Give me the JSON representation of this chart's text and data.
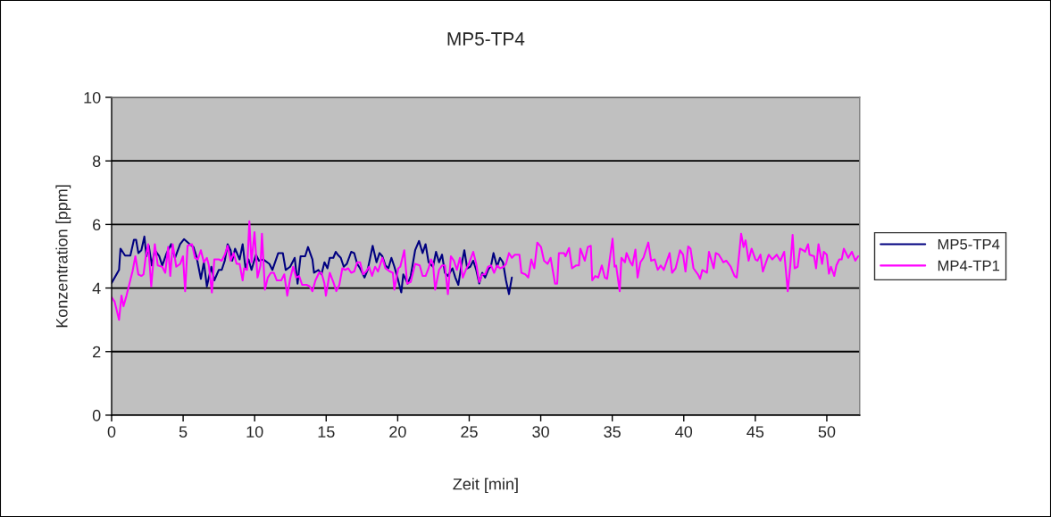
{
  "chart_data": {
    "type": "line",
    "title": "MP5-TP4",
    "xlabel": "Zeit [min]",
    "ylabel": "Konzentration [ppm]",
    "xlim": [
      0,
      52.3
    ],
    "xticks": [
      0,
      5,
      10,
      15,
      20,
      25,
      30,
      35,
      40,
      45,
      50
    ],
    "ylim": [
      0,
      10
    ],
    "yticks": [
      0,
      2,
      4,
      6,
      8,
      10
    ],
    "grid": "y",
    "legend": "right",
    "marker": "none",
    "line_style": "solid",
    "series": [
      {
        "name": "MP5-TP4",
        "color": "#000080",
        "x": [
          0.0,
          0.52,
          0.62,
          0.94,
          1.31,
          1.56,
          1.71,
          1.87,
          2.08,
          2.29,
          2.43,
          2.6,
          2.81,
          3.02,
          3.33,
          3.54,
          3.85,
          4.16,
          4.43,
          4.79,
          5.06,
          5.41,
          5.72,
          5.93,
          6.24,
          6.45,
          6.66,
          6.97,
          7.18,
          7.49,
          7.7,
          7.91,
          8.11,
          8.32,
          8.43,
          8.63,
          8.95,
          9.16,
          9.36,
          9.57,
          9.78,
          10.09,
          10.3,
          10.61,
          11.03,
          11.24,
          11.65,
          11.97,
          12.17,
          12.48,
          12.8,
          13.0,
          13.21,
          13.53,
          13.73,
          14.04,
          14.15,
          14.46,
          14.67,
          14.88,
          15.09,
          15.25,
          15.5,
          15.67,
          15.81,
          16.02,
          16.23,
          16.44,
          16.75,
          16.96,
          17.17,
          17.37,
          17.68,
          17.9,
          18.25,
          18.52,
          18.73,
          18.93,
          19.14,
          19.35,
          19.56,
          19.77,
          19.98,
          20.25,
          20.39,
          20.7,
          20.91,
          21.22,
          21.49,
          21.74,
          21.95,
          22.16,
          22.47,
          22.68,
          22.89,
          23.1,
          23.3,
          23.51,
          23.83,
          24.03,
          24.24,
          24.45,
          24.66,
          24.86,
          25.07,
          25.28,
          25.49,
          25.7,
          25.91,
          26.11,
          26.32,
          26.53,
          26.7,
          26.95,
          27.15,
          27.36,
          27.57,
          27.78,
          27.98
        ],
        "values": [
          4.16,
          4.57,
          5.24,
          5.02,
          5.02,
          5.52,
          5.52,
          5.1,
          5.19,
          5.62,
          5.0,
          5.33,
          4.71,
          5.19,
          5.0,
          4.71,
          5.1,
          5.38,
          4.95,
          5.38,
          5.54,
          5.4,
          5.29,
          5.0,
          4.29,
          4.81,
          4.05,
          4.67,
          4.24,
          4.57,
          4.57,
          4.86,
          5.38,
          5.19,
          4.86,
          5.24,
          4.9,
          5.38,
          4.62,
          4.9,
          4.57,
          5.05,
          4.86,
          4.9,
          4.76,
          4.57,
          5.1,
          5.1,
          4.57,
          4.67,
          4.95,
          4.14,
          5.0,
          5.0,
          5.29,
          4.9,
          4.48,
          4.57,
          4.43,
          4.81,
          4.62,
          4.95,
          4.95,
          5.14,
          5.05,
          4.95,
          4.67,
          4.76,
          5.14,
          5.1,
          4.76,
          4.62,
          4.33,
          4.57,
          5.33,
          4.81,
          5.1,
          5.0,
          4.71,
          4.62,
          4.95,
          4.67,
          4.33,
          3.86,
          4.43,
          4.14,
          4.38,
          5.19,
          5.48,
          5.1,
          5.38,
          4.81,
          4.67,
          5.14,
          4.81,
          5.05,
          4.48,
          4.38,
          4.62,
          4.33,
          4.1,
          4.71,
          5.19,
          4.62,
          4.67,
          4.86,
          4.57,
          4.14,
          4.48,
          4.33,
          4.57,
          4.71,
          5.1,
          4.67,
          4.95,
          4.81,
          4.24,
          3.81,
          4.33
        ]
      },
      {
        "name": "MP4-TP1",
        "color": "#ff00ff",
        "x": [
          0.0,
          0.21,
          0.52,
          0.69,
          0.83,
          1.04,
          1.25,
          1.46,
          1.66,
          1.87,
          2.08,
          2.23,
          2.39,
          2.56,
          2.77,
          3.02,
          3.23,
          3.54,
          3.75,
          3.95,
          4.1,
          4.27,
          4.52,
          4.79,
          4.99,
          5.14,
          5.31,
          5.62,
          5.83,
          6.03,
          6.24,
          6.45,
          6.66,
          6.8,
          7.01,
          7.18,
          7.49,
          7.7,
          7.91,
          8.11,
          8.32,
          8.53,
          8.74,
          8.95,
          9.16,
          9.26,
          9.47,
          9.63,
          9.78,
          9.99,
          10.2,
          10.41,
          10.51,
          10.72,
          10.92,
          11.13,
          11.34,
          11.55,
          11.86,
          12.07,
          12.28,
          12.48,
          12.69,
          12.9,
          13.11,
          13.32,
          13.63,
          13.84,
          14.04,
          14.25,
          14.5,
          14.67,
          14.88,
          14.98,
          15.25,
          15.5,
          15.71,
          15.92,
          16.13,
          16.33,
          16.54,
          16.75,
          16.96,
          17.17,
          17.37,
          17.58,
          17.79,
          18.0,
          18.21,
          18.42,
          18.62,
          18.93,
          19.14,
          19.46,
          19.66,
          19.77,
          20.04,
          20.18,
          20.46,
          20.66,
          20.91,
          21.22,
          21.54,
          21.74,
          21.95,
          22.16,
          22.33,
          22.47,
          22.62,
          22.89,
          23.1,
          23.3,
          23.51,
          23.72,
          23.93,
          24.14,
          24.35,
          24.55,
          24.76,
          24.97,
          25.28,
          25.49,
          25.7,
          25.91,
          26.11,
          26.32,
          26.53,
          26.74,
          26.95,
          27.15,
          27.4,
          27.57,
          27.78,
          27.98,
          28.19,
          28.51,
          28.65,
          28.92,
          29.13,
          29.34,
          29.55,
          29.76,
          30.02,
          30.23,
          30.48,
          30.69,
          31.0,
          31.15,
          31.27,
          31.63,
          31.73,
          31.98,
          32.19,
          32.46,
          32.67,
          32.77,
          33.08,
          33.29,
          33.5,
          33.6,
          33.81,
          34.02,
          34.27,
          34.48,
          34.64,
          35.02,
          35.16,
          35.27,
          35.52,
          35.64,
          35.89,
          36.0,
          36.27,
          36.41,
          36.62,
          36.77,
          36.97,
          37.18,
          37.52,
          37.72,
          37.97,
          38.18,
          38.39,
          38.6,
          39.01,
          39.18,
          39.43,
          39.74,
          39.95,
          40.12,
          40.31,
          40.47,
          40.68,
          40.99,
          41.14,
          41.3,
          41.62,
          41.76,
          42.09,
          42.24,
          42.45,
          42.65,
          42.76,
          42.97,
          43.28,
          43.55,
          43.7,
          43.9,
          44.01,
          44.18,
          44.32,
          44.53,
          44.74,
          45.01,
          45.15,
          45.36,
          45.53,
          45.67,
          45.94,
          46.19,
          46.5,
          46.75,
          47.02,
          47.27,
          47.44,
          47.61,
          47.75,
          47.96,
          48.13,
          48.34,
          48.48,
          48.69,
          48.79,
          49.11,
          49.25,
          49.42,
          49.67,
          49.79,
          50.0,
          50.15,
          50.29,
          50.52,
          50.67,
          50.87,
          51.04,
          51.19,
          51.5,
          51.75,
          51.99,
          52.19
        ],
        "values": [
          3.71,
          3.57,
          3.0,
          3.76,
          3.43,
          3.76,
          4.14,
          4.52,
          5.0,
          4.43,
          4.38,
          4.43,
          5.0,
          5.38,
          4.05,
          5.38,
          4.71,
          4.67,
          4.48,
          5.29,
          4.38,
          5.38,
          4.67,
          4.76,
          5.0,
          3.9,
          5.33,
          5.38,
          4.95,
          4.9,
          5.19,
          4.81,
          4.95,
          4.71,
          3.86,
          4.9,
          4.9,
          4.86,
          5.05,
          5.33,
          4.86,
          5.1,
          4.76,
          4.76,
          4.24,
          4.62,
          4.57,
          6.1,
          4.81,
          5.76,
          4.33,
          4.71,
          5.71,
          3.95,
          4.33,
          4.48,
          4.48,
          4.24,
          4.24,
          4.43,
          3.76,
          4.29,
          4.67,
          4.33,
          4.38,
          4.1,
          4.1,
          4.05,
          3.9,
          4.24,
          4.48,
          4.48,
          4.14,
          3.76,
          4.48,
          4.19,
          3.9,
          4.1,
          4.62,
          4.57,
          4.62,
          4.48,
          4.52,
          4.81,
          4.81,
          4.43,
          4.52,
          4.67,
          4.38,
          4.67,
          4.52,
          4.95,
          4.62,
          4.52,
          4.48,
          3.95,
          4.62,
          4.67,
          5.19,
          4.14,
          4.19,
          4.76,
          4.71,
          4.38,
          4.38,
          4.62,
          4.9,
          4.76,
          3.95,
          4.57,
          4.71,
          4.71,
          3.81,
          5.0,
          4.86,
          4.57,
          4.95,
          4.33,
          4.57,
          4.76,
          5.14,
          4.76,
          4.19,
          4.43,
          4.43,
          4.67,
          4.71,
          4.48,
          4.71,
          4.62,
          4.67,
          4.76,
          5.1,
          4.95,
          5.05,
          5.05,
          4.48,
          4.43,
          4.33,
          4.9,
          4.62,
          5.43,
          5.29,
          4.86,
          4.76,
          4.95,
          4.14,
          4.14,
          5.1,
          5.1,
          5.0,
          5.26,
          4.62,
          4.71,
          4.71,
          5.24,
          4.86,
          5.29,
          5.33,
          4.24,
          4.38,
          4.33,
          4.71,
          4.33,
          4.29,
          5.55,
          4.67,
          4.71,
          3.9,
          4.95,
          4.81,
          5.1,
          4.81,
          4.71,
          5.21,
          4.33,
          4.81,
          4.95,
          5.43,
          4.86,
          4.9,
          4.57,
          4.71,
          4.57,
          5.1,
          4.48,
          4.62,
          5.19,
          5.05,
          4.52,
          5.31,
          5.24,
          4.62,
          4.43,
          4.29,
          4.57,
          4.48,
          5.14,
          4.62,
          5.1,
          5.05,
          4.9,
          4.81,
          4.86,
          4.67,
          4.38,
          4.33,
          5.19,
          5.71,
          5.29,
          5.5,
          4.86,
          5.24,
          4.9,
          4.86,
          5.05,
          4.52,
          4.71,
          5.05,
          4.9,
          5.05,
          4.86,
          5.14,
          3.9,
          4.67,
          5.67,
          4.62,
          4.67,
          5.24,
          5.19,
          5.14,
          5.38,
          5.05,
          5.0,
          4.62,
          5.38,
          4.76,
          5.14,
          5.05,
          4.45,
          4.67,
          4.38,
          4.71,
          4.9,
          4.9,
          5.24,
          4.95,
          5.14,
          4.86,
          5.0
        ]
      }
    ]
  }
}
